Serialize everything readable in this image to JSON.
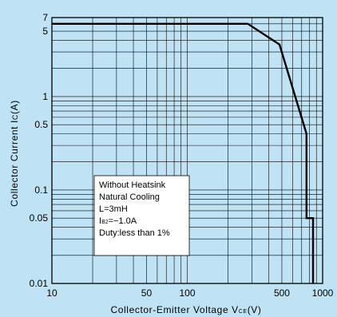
{
  "chart_data": {
    "type": "line",
    "xlabel": "Collector-Emitter Voltage VCE(V)",
    "xlabel_main": "Collector-Emitter Voltage V",
    "xlabel_sub": "CE",
    "xlabel_unit": "(V)",
    "ylabel": "Collector Current Ic(A)",
    "ylabel_main": "Collector Current I",
    "ylabel_sub": "C",
    "ylabel_unit": "(A)",
    "x_scale": "log",
    "y_scale": "log",
    "xlim": [
      10,
      1000
    ],
    "ylim": [
      0.01,
      7
    ],
    "grid": true,
    "x_tick_values": [
      10,
      50,
      100,
      500,
      1000
    ],
    "x_tick_labels": [
      "10",
      "50",
      "100",
      "500",
      "1000"
    ],
    "y_tick_values": [
      0.01,
      0.05,
      0.1,
      0.5,
      1,
      5,
      7
    ],
    "y_tick_labels": [
      "0.01",
      "0.05",
      "0.1",
      "0.5",
      "1",
      "5",
      "7"
    ],
    "series": [
      {
        "points": [
          [
            10,
            6
          ],
          [
            280,
            6
          ],
          [
            480,
            3.6
          ],
          [
            760,
            0.4
          ],
          [
            760,
            0.05
          ],
          [
            850,
            0.05
          ],
          [
            850,
            0.01
          ]
        ],
        "color": "#000000"
      }
    ],
    "annotation": {
      "lines": [
        "Without Heatsink",
        "Natural Cooling",
        "L=3mH",
        "Duty:less than 1%"
      ],
      "ib_main": "I",
      "ib_sub": "B2",
      "ib_value": "=−1.0A"
    }
  }
}
